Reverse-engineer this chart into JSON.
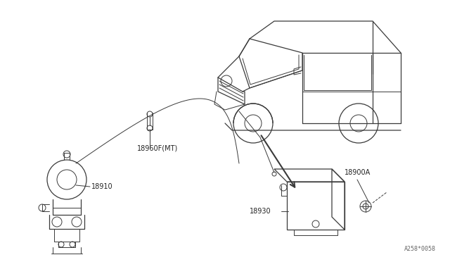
{
  "bg_color": "#ffffff",
  "line_color": "#3a3a3a",
  "fig_width": 6.4,
  "fig_height": 3.72,
  "dpi": 100,
  "watermark": "A258*0058",
  "lw_thin": 0.7,
  "lw_med": 0.9,
  "lw_thick": 1.5,
  "label_fontsize": 7.0,
  "text_color": "#222222"
}
